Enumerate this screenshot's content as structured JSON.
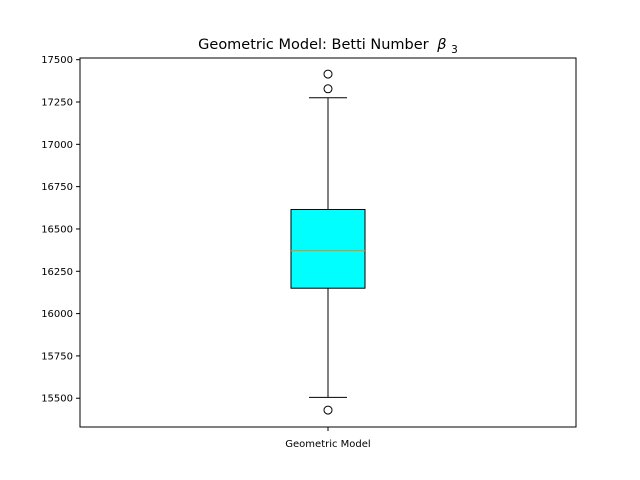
{
  "chart_data": {
    "type": "box",
    "title": "Geometric Model: Betti Number",
    "title_symbol": "β",
    "title_subscript": "3",
    "xlabel": "",
    "ylabel": "",
    "categories": [
      "Geometric Model"
    ],
    "ylim": [
      15330,
      17510
    ],
    "yticks": [
      15500,
      15750,
      16000,
      16250,
      16500,
      16750,
      17000,
      17250,
      17500
    ],
    "grid": false,
    "boxes": [
      {
        "name": "Geometric Model",
        "whisker_low": 15505,
        "q1": 16150,
        "median": 16372,
        "q3": 16615,
        "whisker_high": 17275,
        "outliers": [
          15430,
          17328,
          17415
        ]
      }
    ],
    "colors": {
      "box_fill": "#00ffff",
      "median": "#ff7f0e",
      "edge": "#000000"
    }
  }
}
